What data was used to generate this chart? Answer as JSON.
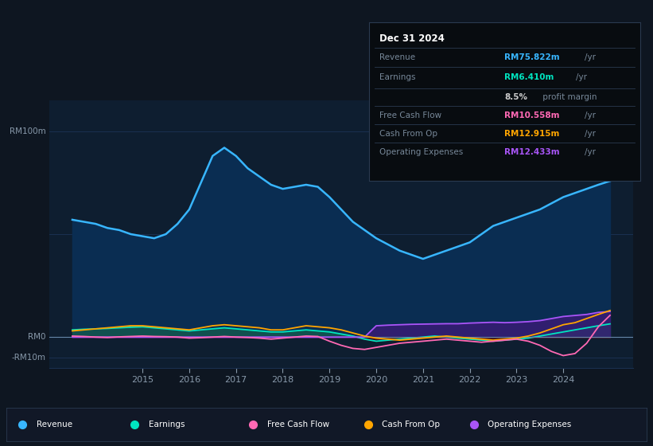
{
  "background_color": "#0e1621",
  "plot_bg_color": "#0e1e30",
  "grid_color": "#1a3050",
  "ylim": [
    -15,
    115
  ],
  "xlim": [
    2013.0,
    2025.5
  ],
  "info_box": {
    "title": "Dec 31 2024",
    "rows": [
      {
        "label": "Revenue",
        "value": "RM75.822m",
        "unit": "/yr",
        "color": "#38b6ff"
      },
      {
        "label": "Earnings",
        "value": "RM6.410m",
        "unit": "/yr",
        "color": "#00e5c0"
      },
      {
        "label": "",
        "value": "8.5%",
        "unit": " profit margin",
        "color": "#cccccc"
      },
      {
        "label": "Free Cash Flow",
        "value": "RM10.558m",
        "unit": "/yr",
        "color": "#ff69b4"
      },
      {
        "label": "Cash From Op",
        "value": "RM12.915m",
        "unit": "/yr",
        "color": "#ffa500"
      },
      {
        "label": "Operating Expenses",
        "value": "RM12.433m",
        "unit": "/yr",
        "color": "#a855f7"
      }
    ]
  },
  "legend": [
    {
      "label": "Revenue",
      "color": "#38b6ff"
    },
    {
      "label": "Earnings",
      "color": "#00e5c0"
    },
    {
      "label": "Free Cash Flow",
      "color": "#ff69b4"
    },
    {
      "label": "Cash From Op",
      "color": "#ffa500"
    },
    {
      "label": "Operating Expenses",
      "color": "#a855f7"
    }
  ],
  "x": [
    2013.5,
    2013.75,
    2014.0,
    2014.25,
    2014.5,
    2014.75,
    2015.0,
    2015.25,
    2015.5,
    2015.75,
    2016.0,
    2016.25,
    2016.5,
    2016.75,
    2017.0,
    2017.25,
    2017.5,
    2017.75,
    2018.0,
    2018.25,
    2018.5,
    2018.75,
    2019.0,
    2019.25,
    2019.5,
    2019.75,
    2020.0,
    2020.25,
    2020.5,
    2020.75,
    2021.0,
    2021.25,
    2021.5,
    2021.75,
    2022.0,
    2022.25,
    2022.5,
    2022.75,
    2023.0,
    2023.25,
    2023.5,
    2023.75,
    2024.0,
    2024.25,
    2024.5,
    2024.75,
    2025.0
  ],
  "revenue": [
    57,
    56,
    55,
    53,
    52,
    50,
    49,
    48,
    50,
    55,
    62,
    75,
    88,
    92,
    88,
    82,
    78,
    74,
    72,
    73,
    74,
    73,
    68,
    62,
    56,
    52,
    48,
    45,
    42,
    40,
    38,
    40,
    42,
    44,
    46,
    50,
    54,
    56,
    58,
    60,
    62,
    65,
    68,
    70,
    72,
    74,
    75.822
  ],
  "earnings": [
    3.5,
    3.8,
    4.0,
    4.2,
    4.5,
    4.8,
    5.0,
    4.5,
    4.0,
    3.5,
    3.0,
    3.5,
    4.0,
    4.5,
    4.0,
    3.5,
    3.0,
    2.5,
    2.5,
    3.0,
    3.5,
    3.0,
    2.5,
    1.5,
    0.5,
    -1.0,
    -2.0,
    -1.5,
    -1.0,
    -0.5,
    0.0,
    0.5,
    0.0,
    -0.5,
    -1.0,
    -1.5,
    -2.0,
    -1.5,
    -1.0,
    -0.5,
    0.5,
    1.5,
    2.5,
    3.5,
    4.5,
    5.5,
    6.41
  ],
  "free_cash_flow": [
    0.5,
    0.3,
    0.0,
    -0.2,
    0.1,
    0.3,
    0.5,
    0.3,
    0.2,
    0.0,
    -0.5,
    -0.3,
    0.0,
    0.3,
    0.0,
    -0.2,
    -0.5,
    -1.0,
    -0.5,
    0.0,
    0.5,
    0.3,
    -2.0,
    -4.0,
    -5.5,
    -6.0,
    -5.0,
    -4.0,
    -3.0,
    -2.5,
    -2.0,
    -1.5,
    -1.0,
    -1.5,
    -2.0,
    -2.5,
    -2.0,
    -1.5,
    -1.0,
    -2.0,
    -4.0,
    -7.0,
    -9.0,
    -8.0,
    -3.0,
    5.0,
    10.558
  ],
  "cash_from_op": [
    3.0,
    3.5,
    4.0,
    4.5,
    5.0,
    5.5,
    5.5,
    5.0,
    4.5,
    4.0,
    3.5,
    4.5,
    5.5,
    6.0,
    5.5,
    5.0,
    4.5,
    3.5,
    3.5,
    4.5,
    5.5,
    5.0,
    4.5,
    3.5,
    2.0,
    0.5,
    -0.5,
    -1.0,
    -1.5,
    -1.0,
    -0.5,
    0.0,
    0.5,
    0.0,
    -0.5,
    -1.0,
    -1.5,
    -1.0,
    -0.5,
    0.5,
    2.0,
    4.0,
    6.0,
    7.0,
    9.0,
    11.0,
    12.915
  ],
  "operating_expenses": [
    0.0,
    0.0,
    0.0,
    0.0,
    0.0,
    0.0,
    0.0,
    0.0,
    0.0,
    0.0,
    0.0,
    0.0,
    0.0,
    0.0,
    0.0,
    0.0,
    0.0,
    0.0,
    0.0,
    0.0,
    0.0,
    0.0,
    0.0,
    0.0,
    0.0,
    0.0,
    5.5,
    5.8,
    6.0,
    6.2,
    6.3,
    6.4,
    6.5,
    6.5,
    6.8,
    7.0,
    7.2,
    7.0,
    7.2,
    7.5,
    8.0,
    9.0,
    10.0,
    10.5,
    11.0,
    12.0,
    12.433
  ]
}
